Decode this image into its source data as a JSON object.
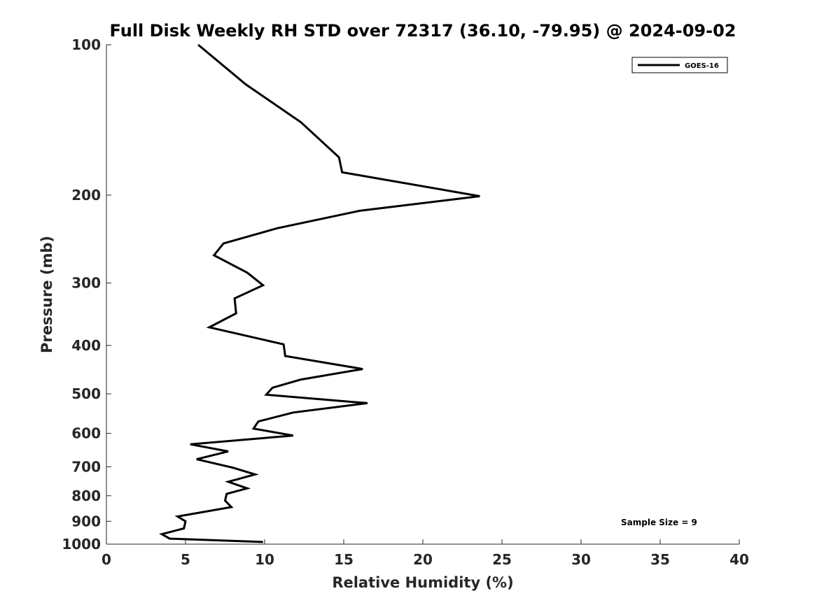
{
  "chart_data": {
    "type": "line",
    "title": "Full Disk Weekly RH STD over 72317 (36.10, -79.95) @ 2024-09-02",
    "xlabel": "Relative Humidity (%)",
    "ylabel": "Pressure (mb)",
    "xlim": [
      0,
      40
    ],
    "ylim": [
      1000,
      100
    ],
    "yscale": "log",
    "x_ticks": [
      "0",
      "5",
      "10",
      "15",
      "20",
      "25",
      "30",
      "35",
      "40"
    ],
    "y_ticks": [
      "100",
      "200",
      "300",
      "400",
      "500",
      "600",
      "700",
      "800",
      "900",
      "1000"
    ],
    "grid": false,
    "legend_position": "top-right",
    "annotation": "Sample Size = 9",
    "series": [
      {
        "name": "GOES-16",
        "color": "#000000",
        "x": [
          5.8,
          8.8,
          12.3,
          14.7,
          14.9,
          23.6,
          16.0,
          10.8,
          7.4,
          6.8,
          8.9,
          9.9,
          8.1,
          8.2,
          6.5,
          11.2,
          11.3,
          16.2,
          12.3,
          10.5,
          10.1,
          16.5,
          11.8,
          9.6,
          9.3,
          11.8,
          5.3,
          7.7,
          5.7,
          8.0,
          9.4,
          7.7,
          8.9,
          7.6,
          7.5,
          7.9,
          4.5,
          5.0,
          4.9,
          3.5,
          4.0,
          9.9
        ],
        "y": [
          100,
          120,
          143,
          168,
          180,
          201,
          215,
          233,
          250,
          264,
          286,
          303,
          322,
          345,
          368,
          398,
          420,
          446,
          468,
          486,
          502,
          522,
          545,
          568,
          587,
          606,
          631,
          652,
          676,
          703,
          725,
          750,
          773,
          793,
          818,
          843,
          880,
          900,
          930,
          955,
          975,
          990
        ]
      }
    ]
  }
}
